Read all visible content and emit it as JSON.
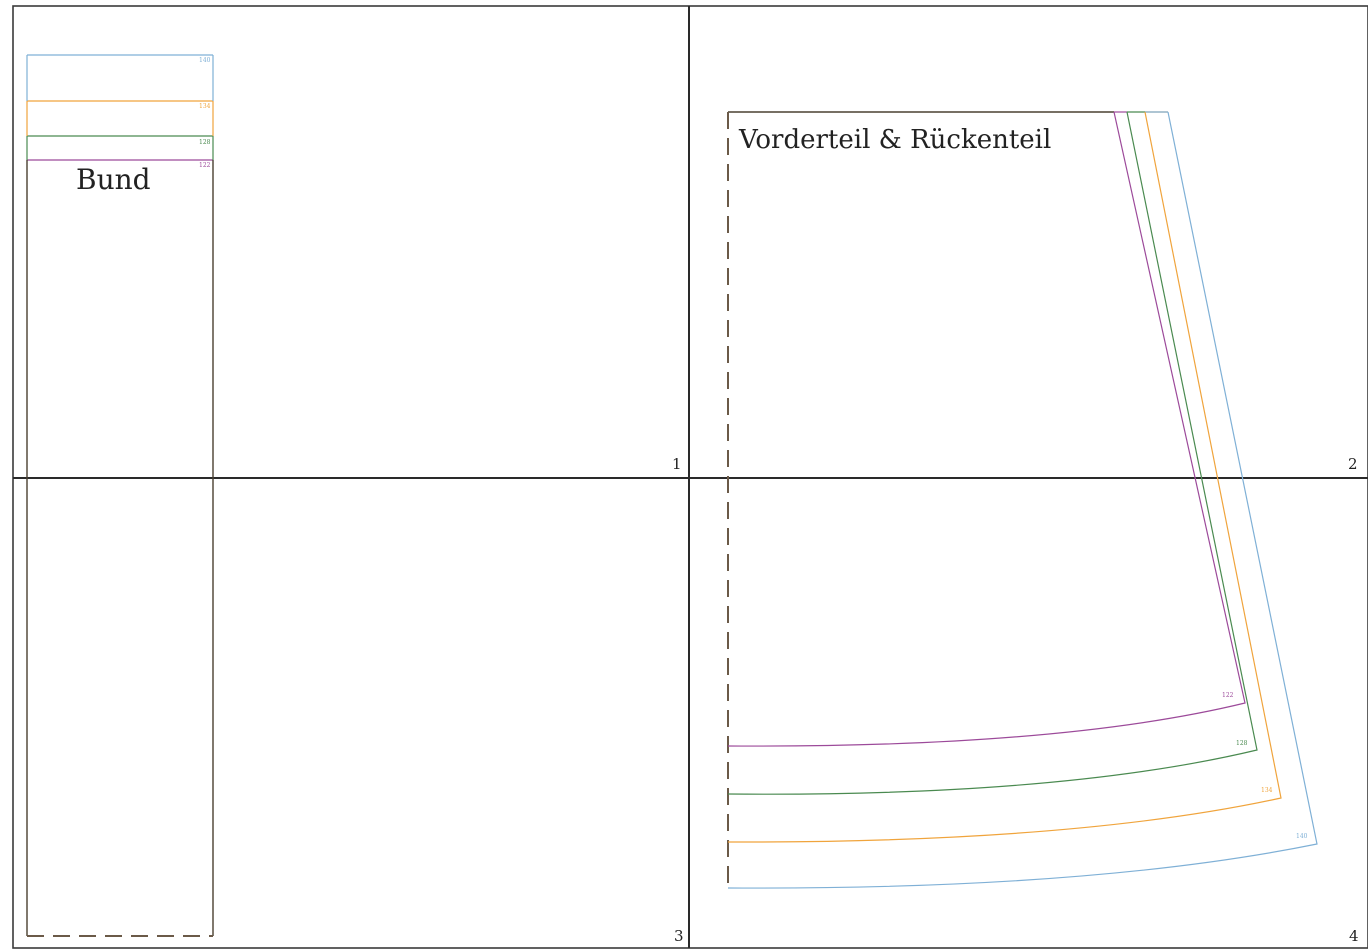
{
  "pattern": {
    "pieces": {
      "waistband": {
        "label": "Bund"
      },
      "skirt": {
        "label": "Vorderteil & Rückenteil"
      }
    },
    "pages": [
      "1",
      "2",
      "3",
      "4"
    ],
    "sizes": [
      {
        "label": "140",
        "color": "#7fb0d6"
      },
      {
        "label": "134",
        "color": "#f0a43c"
      },
      {
        "label": "128",
        "color": "#4a8a50"
      },
      {
        "label": "122",
        "color": "#9c4a9a"
      }
    ],
    "colors": {
      "grid": "#3a3a3a",
      "fold_line": "#6b5a48",
      "outline": "#4a4030"
    }
  }
}
